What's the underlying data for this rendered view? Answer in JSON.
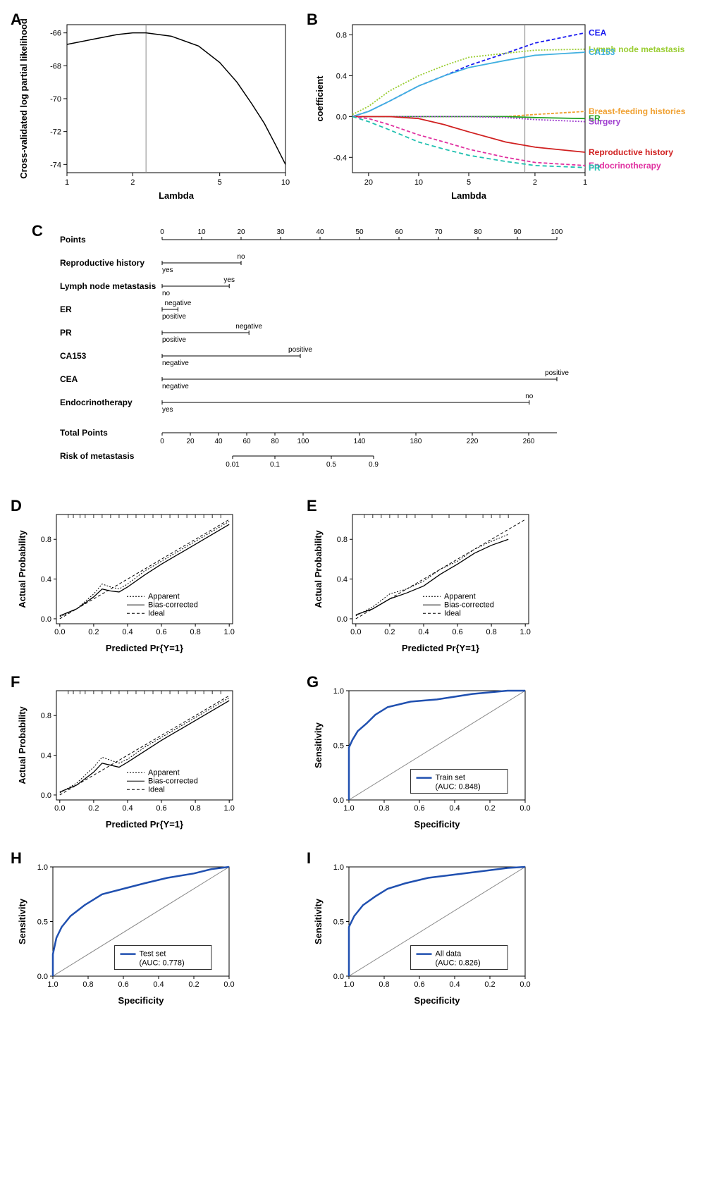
{
  "panelA": {
    "label": "A",
    "type": "line",
    "xlabel": "Lambda",
    "ylabel": "Cross-validated log partial likelihood",
    "xticks": [
      1,
      2,
      5,
      10
    ],
    "yticks": [
      -74,
      -72,
      -70,
      -68,
      -66
    ],
    "xscale": "log",
    "xlim": [
      1,
      10
    ],
    "ylim": [
      -74.5,
      -65.5
    ],
    "vline_x": 2.3,
    "vline_color": "#888888",
    "line_color": "#000000",
    "background": "#ffffff",
    "series": {
      "x": [
        1,
        1.3,
        1.7,
        2,
        2.3,
        3,
        4,
        5,
        6,
        7,
        8,
        9,
        10
      ],
      "y": [
        -66.7,
        -66.4,
        -66.1,
        -66,
        -66,
        -66.2,
        -66.8,
        -67.8,
        -69,
        -70.3,
        -71.5,
        -72.8,
        -74
      ]
    }
  },
  "panelB": {
    "label": "B",
    "type": "line",
    "xlabel": "Lambda",
    "ylabel": "coefficient",
    "xticks": [
      20,
      10,
      5,
      2,
      1
    ],
    "yticks": [
      -0.4,
      0.0,
      0.4,
      0.8
    ],
    "xscale": "log-reversed",
    "xlim": [
      25,
      1
    ],
    "ylim": [
      -0.55,
      0.9
    ],
    "vline_x": 2.3,
    "vline_color": "#888888",
    "background": "#ffffff",
    "series": [
      {
        "name": "CEA",
        "color": "#1a1af0",
        "dash": "5,3",
        "end_y": 0.82,
        "x": [
          25,
          20,
          15,
          10,
          7,
          5,
          3,
          2,
          1
        ],
        "y": [
          0,
          0.05,
          0.15,
          0.3,
          0.4,
          0.5,
          0.62,
          0.72,
          0.82
        ]
      },
      {
        "name": "Lymph  node metastasis",
        "color": "#9acd32",
        "dash": "2,2",
        "end_y": 0.66,
        "x": [
          25,
          20,
          15,
          10,
          7,
          5,
          3,
          2,
          1
        ],
        "y": [
          0.02,
          0.1,
          0.25,
          0.4,
          0.5,
          0.58,
          0.62,
          0.65,
          0.66
        ]
      },
      {
        "name": "CA153",
        "color": "#40b0e0",
        "dash": "none",
        "end_y": 0.63,
        "x": [
          25,
          20,
          15,
          10,
          7,
          5,
          3,
          2,
          1
        ],
        "y": [
          0,
          0.05,
          0.15,
          0.3,
          0.4,
          0.48,
          0.55,
          0.6,
          0.63
        ]
      },
      {
        "name": "Breast-feeding histories",
        "color": "#f0a030",
        "dash": "4,2",
        "end_y": 0.05,
        "x": [
          25,
          20,
          15,
          10,
          7,
          5,
          3,
          2,
          1
        ],
        "y": [
          0,
          0,
          0,
          0,
          0,
          0,
          0,
          0.02,
          0.05
        ]
      },
      {
        "name": "ER",
        "color": "#20a020",
        "dash": "none",
        "end_y": -0.02,
        "x": [
          25,
          20,
          15,
          10,
          7,
          5,
          3,
          2,
          1
        ],
        "y": [
          0,
          0,
          0,
          0,
          0,
          0,
          0,
          -0.01,
          -0.02
        ]
      },
      {
        "name": "Surgery",
        "color": "#a040d0",
        "dash": "2,2",
        "end_y": -0.05,
        "x": [
          25,
          20,
          15,
          10,
          7,
          5,
          3,
          2,
          1
        ],
        "y": [
          0,
          0,
          0,
          0,
          0,
          0,
          -0.01,
          -0.03,
          -0.05
        ]
      },
      {
        "name": "Reproductive history",
        "color": "#d02020",
        "dash": "none",
        "end_y": -0.35,
        "x": [
          25,
          20,
          15,
          10,
          7,
          5,
          3,
          2,
          1
        ],
        "y": [
          0,
          0,
          0,
          -0.02,
          -0.08,
          -0.15,
          -0.25,
          -0.3,
          -0.35
        ]
      },
      {
        "name": "Endocrinotherapy",
        "color": "#e030a0",
        "dash": "5,3",
        "end_y": -0.48,
        "x": [
          25,
          20,
          15,
          10,
          7,
          5,
          3,
          2,
          1
        ],
        "y": [
          0,
          -0.02,
          -0.08,
          -0.18,
          -0.25,
          -0.32,
          -0.4,
          -0.45,
          -0.48
        ]
      },
      {
        "name": "PR",
        "color": "#20c0b0",
        "dash": "6,4",
        "end_y": -0.5,
        "x": [
          25,
          20,
          15,
          10,
          7,
          5,
          3,
          2,
          1
        ],
        "y": [
          0,
          -0.05,
          -0.13,
          -0.25,
          -0.32,
          -0.38,
          -0.44,
          -0.48,
          -0.5
        ]
      }
    ]
  },
  "panelC": {
    "label": "C",
    "type": "nomogram",
    "rows": [
      {
        "name": "Points",
        "scale": {
          "min": 0,
          "max": 100,
          "step": 10
        }
      },
      {
        "name": "Reproductive history",
        "range": [
          0,
          20
        ],
        "left": "yes",
        "right": "no"
      },
      {
        "name": "Lymph node metastasis",
        "range": [
          0,
          17
        ],
        "left": "no",
        "right": "yes"
      },
      {
        "name": "ER",
        "range": [
          0,
          4
        ],
        "left": "positive",
        "right": "negative"
      },
      {
        "name": "PR",
        "range": [
          0,
          22
        ],
        "left": "positive",
        "right": "negative"
      },
      {
        "name": "CA153",
        "range": [
          0,
          35
        ],
        "left": "negative",
        "right": "positive"
      },
      {
        "name": "CEA",
        "range": [
          0,
          100
        ],
        "left": "negative",
        "right": "positive"
      },
      {
        "name": "Endocrinotherapy",
        "range": [
          0,
          93
        ],
        "left": "yes",
        "right": "no"
      },
      {
        "name": "Total Points",
        "scale": {
          "min": 0,
          "max": 280,
          "ticks": [
            0,
            20,
            40,
            60,
            80,
            100,
            140,
            180,
            220,
            260
          ]
        }
      },
      {
        "name": "Risk of metastasis",
        "scale": {
          "ticks": [
            0.01,
            0.1,
            0.5,
            0.9
          ],
          "positions": [
            50,
            80,
            120,
            150
          ]
        }
      }
    ]
  },
  "calibration": {
    "xlabel": "Predicted Pr{Y=1}",
    "ylabel": "Actual Probability",
    "xticks": [
      0.0,
      0.2,
      0.4,
      0.6,
      0.8,
      1.0
    ],
    "yticks": [
      0.0,
      0.4,
      0.8
    ],
    "xlim": [
      -0.02,
      1.02
    ],
    "ylim": [
      -0.05,
      1.05
    ],
    "legends": [
      "Apparent",
      "Bias-corrected",
      "Ideal"
    ],
    "legend_styles": [
      "2,2",
      "none",
      "4,3"
    ],
    "ideal": {
      "x": [
        0,
        1
      ],
      "y": [
        0,
        1
      ]
    },
    "line_color": "#000000"
  },
  "panelD": {
    "label": "D",
    "apparent": {
      "x": [
        0,
        0.1,
        0.2,
        0.25,
        0.3,
        0.35,
        0.4,
        0.5,
        0.6,
        0.7,
        0.8,
        0.9,
        1.0
      ],
      "y": [
        0.02,
        0.1,
        0.25,
        0.35,
        0.32,
        0.3,
        0.35,
        0.48,
        0.58,
        0.68,
        0.78,
        0.88,
        0.98
      ]
    },
    "corrected": {
      "x": [
        0,
        0.1,
        0.2,
        0.25,
        0.3,
        0.35,
        0.4,
        0.5,
        0.6,
        0.7,
        0.8,
        0.9,
        1.0
      ],
      "y": [
        0.03,
        0.1,
        0.22,
        0.3,
        0.28,
        0.27,
        0.32,
        0.44,
        0.55,
        0.65,
        0.75,
        0.85,
        0.95
      ]
    },
    "rug_x": [
      0.05,
      0.08,
      0.12,
      0.15,
      0.2,
      0.25,
      0.3,
      0.35,
      0.4,
      0.45,
      0.5,
      0.55,
      0.6,
      0.65,
      0.7,
      0.75,
      0.8,
      0.85,
      0.9,
      0.95
    ]
  },
  "panelE": {
    "label": "E",
    "apparent": {
      "x": [
        0,
        0.1,
        0.2,
        0.3,
        0.4,
        0.5,
        0.6,
        0.7,
        0.8,
        0.9
      ],
      "y": [
        0.03,
        0.12,
        0.25,
        0.3,
        0.38,
        0.5,
        0.58,
        0.7,
        0.78,
        0.85
      ]
    },
    "corrected": {
      "x": [
        0,
        0.1,
        0.2,
        0.3,
        0.4,
        0.5,
        0.6,
        0.7,
        0.8,
        0.9
      ],
      "y": [
        0.04,
        0.1,
        0.2,
        0.26,
        0.33,
        0.45,
        0.55,
        0.66,
        0.74,
        0.8
      ]
    },
    "rug_x": [
      0.05,
      0.1,
      0.15,
      0.2,
      0.25,
      0.3,
      0.35,
      0.45,
      0.55,
      0.65,
      0.75,
      0.8,
      0.85,
      0.9
    ]
  },
  "panelF": {
    "label": "F",
    "apparent": {
      "x": [
        0,
        0.1,
        0.2,
        0.25,
        0.3,
        0.35,
        0.4,
        0.5,
        0.6,
        0.7,
        0.8,
        0.9,
        1.0
      ],
      "y": [
        0.02,
        0.12,
        0.28,
        0.38,
        0.35,
        0.32,
        0.36,
        0.48,
        0.58,
        0.68,
        0.78,
        0.88,
        0.98
      ]
    },
    "corrected": {
      "x": [
        0,
        0.1,
        0.2,
        0.25,
        0.3,
        0.35,
        0.4,
        0.5,
        0.6,
        0.7,
        0.8,
        0.9,
        1.0
      ],
      "y": [
        0.03,
        0.1,
        0.23,
        0.32,
        0.3,
        0.28,
        0.33,
        0.44,
        0.55,
        0.65,
        0.75,
        0.85,
        0.95
      ]
    },
    "rug_x": [
      0.05,
      0.08,
      0.12,
      0.15,
      0.2,
      0.25,
      0.3,
      0.35,
      0.4,
      0.45,
      0.5,
      0.55,
      0.6,
      0.65,
      0.7,
      0.75,
      0.8,
      0.85,
      0.9,
      0.95
    ]
  },
  "roc": {
    "xlabel": "Specificity",
    "ylabel": "Sensitivity",
    "xticks": [
      1.0,
      0.8,
      0.6,
      0.4,
      0.2,
      0.0
    ],
    "yticks": [
      0.0,
      0.5,
      1.0
    ],
    "xlim": [
      1.0,
      0.0
    ],
    "ylim": [
      0.0,
      1.0
    ],
    "diag_color": "#888888",
    "line_color": "#2050b0",
    "line_width": 2.5
  },
  "panelG": {
    "label": "G",
    "legend": "Train set",
    "auc": "(AUC: 0.848)",
    "curve": {
      "x": [
        1,
        1,
        1,
        0.98,
        0.95,
        0.9,
        0.85,
        0.78,
        0.65,
        0.5,
        0.3,
        0.1,
        0
      ],
      "y": [
        0,
        0.3,
        0.48,
        0.55,
        0.63,
        0.7,
        0.78,
        0.85,
        0.9,
        0.92,
        0.97,
        1,
        1
      ]
    }
  },
  "panelH": {
    "label": "H",
    "legend": "Test set",
    "auc": "(AUC: 0.778)",
    "curve": {
      "x": [
        1,
        1,
        0.98,
        0.95,
        0.9,
        0.82,
        0.72,
        0.6,
        0.48,
        0.35,
        0.2,
        0.1,
        0
      ],
      "y": [
        0,
        0.2,
        0.35,
        0.45,
        0.55,
        0.65,
        0.75,
        0.8,
        0.85,
        0.9,
        0.94,
        0.98,
        1
      ]
    }
  },
  "panelI": {
    "label": "I",
    "legend": "All data",
    "auc": "(AUC: 0.826)",
    "curve": {
      "x": [
        1,
        1,
        1,
        0.97,
        0.92,
        0.85,
        0.78,
        0.68,
        0.55,
        0.4,
        0.25,
        0.1,
        0
      ],
      "y": [
        0,
        0.25,
        0.45,
        0.55,
        0.65,
        0.73,
        0.8,
        0.85,
        0.9,
        0.93,
        0.96,
        0.99,
        1
      ]
    }
  }
}
